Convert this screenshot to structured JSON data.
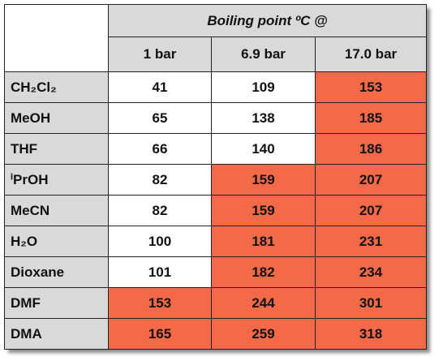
{
  "table": {
    "header": {
      "title": "Boiling point ºC @",
      "columns": [
        "1 bar",
        "6.9 bar",
        "17.0 bar"
      ]
    },
    "highlight_color": "#f46a48",
    "rows": [
      {
        "label": "CH₂Cl₂",
        "values": [
          41,
          109,
          153
        ],
        "highlight": [
          false,
          false,
          true
        ]
      },
      {
        "label": "MeOH",
        "values": [
          65,
          138,
          185
        ],
        "highlight": [
          false,
          false,
          true
        ]
      },
      {
        "label": "THF",
        "values": [
          66,
          140,
          186
        ],
        "highlight": [
          false,
          false,
          true
        ]
      },
      {
        "label": "ⁱPrOH",
        "values": [
          82,
          159,
          207
        ],
        "highlight": [
          false,
          true,
          true
        ]
      },
      {
        "label": "MeCN",
        "values": [
          82,
          159,
          207
        ],
        "highlight": [
          false,
          true,
          true
        ]
      },
      {
        "label": "H₂O",
        "values": [
          100,
          181,
          231
        ],
        "highlight": [
          false,
          true,
          true
        ]
      },
      {
        "label": "Dioxane",
        "values": [
          101,
          182,
          234
        ],
        "highlight": [
          false,
          true,
          true
        ]
      },
      {
        "label": "DMF",
        "values": [
          153,
          244,
          301
        ],
        "highlight": [
          true,
          true,
          true
        ]
      },
      {
        "label": "DMA",
        "values": [
          165,
          259,
          318
        ],
        "highlight": [
          true,
          true,
          true
        ]
      }
    ]
  }
}
